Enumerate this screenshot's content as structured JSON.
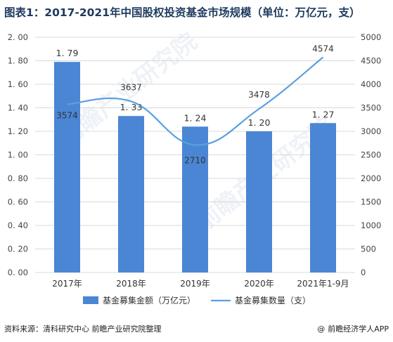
{
  "title": "图表1：2017-2021年中国股权投资基金市场规模（单位：万亿元，支）",
  "footer": {
    "source": "资料来源：清科研究中心 前瞻产业研究院整理",
    "brand": "前瞻经济学人APP",
    "brand_icon": "at-sign-icon"
  },
  "watermark": "前瞻产业研究院",
  "colors": {
    "bar": "#4a86d4",
    "line": "#5aa0de",
    "title": "#1f3a5f"
  },
  "chart_data": {
    "type": "bar",
    "categories": [
      "2017年",
      "2018年",
      "2019年",
      "2020年",
      "2021年1-9月"
    ],
    "series": [
      {
        "name": "基金募集金额（万亿元）",
        "type": "bar",
        "axis": "left",
        "values": [
          1.79,
          1.33,
          1.24,
          1.2,
          1.27
        ],
        "labels": [
          "1. 79",
          "1. 33",
          "1. 24",
          "1. 20",
          "1. 27"
        ]
      },
      {
        "name": "基金募集数量（支）",
        "type": "line",
        "axis": "right",
        "smooth": true,
        "values": [
          3574,
          3637,
          2710,
          3478,
          4574
        ],
        "labels": [
          "3574",
          "3637",
          "2710",
          "3478",
          "4574"
        ]
      }
    ],
    "y_left": {
      "ylim": [
        0,
        2
      ],
      "ticks": [
        "0. 00",
        "0. 20",
        "0. 40",
        "0. 60",
        "0. 80",
        "1. 00",
        "1. 20",
        "1. 40",
        "1. 60",
        "1. 80",
        "2. 00"
      ]
    },
    "y_right": {
      "ylim": [
        0,
        5000
      ],
      "ticks": [
        "0",
        "500",
        "1000",
        "1500",
        "2000",
        "2500",
        "3000",
        "3500",
        "4000",
        "4500",
        "5000"
      ]
    },
    "grid": true,
    "legend": "bottom"
  }
}
